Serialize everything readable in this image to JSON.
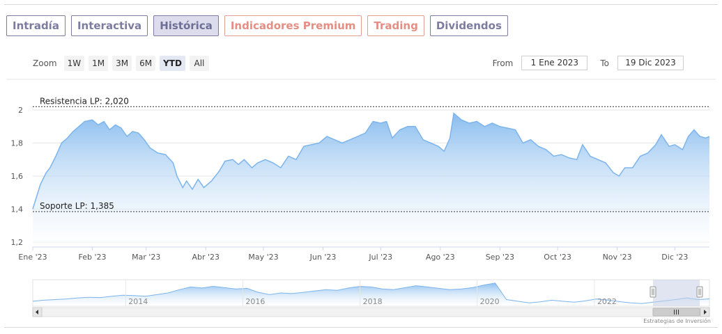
{
  "tabs": [
    {
      "label": "Intradía",
      "style": "normal"
    },
    {
      "label": "Interactiva",
      "style": "normal"
    },
    {
      "label": "Histórica",
      "style": "active"
    },
    {
      "label": "Indicadores Premium",
      "style": "premium"
    },
    {
      "label": "Trading",
      "style": "premium"
    },
    {
      "label": "Dividendos",
      "style": "normal"
    }
  ],
  "zoom": {
    "label": "Zoom",
    "buttons": [
      "1W",
      "1M",
      "3M",
      "6M",
      "YTD",
      "All"
    ],
    "selected": "YTD"
  },
  "range": {
    "from_label": "From",
    "from_value": "1 Ene 2023",
    "to_label": "To",
    "to_value": "19 Dic 2023"
  },
  "credits": "Estrategias de Inversión",
  "colors": {
    "series_line": "#7cb5ec",
    "area_top": "#7cb5ec",
    "area_bottom": "#ffffff",
    "tab_border": "#7c7ca0",
    "tab_premium": "#e48e84",
    "tab_active_bg": "#dcdcec",
    "navigator_mask": "#c7d0e6"
  },
  "chart_data": {
    "type": "area",
    "ylim": [
      1.2,
      2.0
    ],
    "yticks": [
      {
        "value": 1.2,
        "label": "1,2"
      },
      {
        "value": 1.4,
        "label": "1,4"
      },
      {
        "value": 1.6,
        "label": "1,6"
      },
      {
        "value": 1.8,
        "label": "1,8"
      },
      {
        "value": 2.0,
        "label": "2"
      }
    ],
    "xticks": [
      "Ene '23",
      "Feb '23",
      "Mar '23",
      "Abr '23",
      "May '23",
      "Jun '23",
      "Jul '23",
      "Ago '23",
      "Sep '23",
      "Oct '23",
      "Nov '23",
      "Dic '23"
    ],
    "x_range": [
      "2023-01-01",
      "2023-12-19"
    ],
    "grid": true,
    "plot_lines": [
      {
        "value": 2.02,
        "label": "Resistencia LP: 2,020"
      },
      {
        "value": 1.385,
        "label": "Soporte LP: 1,385"
      }
    ],
    "series": [
      {
        "points": [
          [
            "2023-01-01",
            1.4
          ],
          [
            "2023-01-05",
            1.55
          ],
          [
            "2023-01-08",
            1.62
          ],
          [
            "2023-01-10",
            1.65
          ],
          [
            "2023-01-13",
            1.72
          ],
          [
            "2023-01-16",
            1.8
          ],
          [
            "2023-01-19",
            1.83
          ],
          [
            "2023-01-22",
            1.87
          ],
          [
            "2023-01-25",
            1.9
          ],
          [
            "2023-01-28",
            1.93
          ],
          [
            "2023-02-01",
            1.94
          ],
          [
            "2023-02-04",
            1.91
          ],
          [
            "2023-02-07",
            1.93
          ],
          [
            "2023-02-10",
            1.88
          ],
          [
            "2023-02-13",
            1.91
          ],
          [
            "2023-02-16",
            1.89
          ],
          [
            "2023-02-19",
            1.84
          ],
          [
            "2023-02-22",
            1.87
          ],
          [
            "2023-02-25",
            1.86
          ],
          [
            "2023-02-28",
            1.82
          ],
          [
            "2023-03-03",
            1.77
          ],
          [
            "2023-03-07",
            1.74
          ],
          [
            "2023-03-11",
            1.73
          ],
          [
            "2023-03-15",
            1.68
          ],
          [
            "2023-03-17",
            1.6
          ],
          [
            "2023-03-20",
            1.53
          ],
          [
            "2023-03-22",
            1.57
          ],
          [
            "2023-03-25",
            1.52
          ],
          [
            "2023-03-28",
            1.58
          ],
          [
            "2023-03-31",
            1.53
          ],
          [
            "2023-04-04",
            1.57
          ],
          [
            "2023-04-08",
            1.63
          ],
          [
            "2023-04-11",
            1.69
          ],
          [
            "2023-04-15",
            1.7
          ],
          [
            "2023-04-18",
            1.67
          ],
          [
            "2023-04-21",
            1.7
          ],
          [
            "2023-04-25",
            1.65
          ],
          [
            "2023-04-28",
            1.68
          ],
          [
            "2023-05-02",
            1.7
          ],
          [
            "2023-05-06",
            1.68
          ],
          [
            "2023-05-10",
            1.65
          ],
          [
            "2023-05-14",
            1.72
          ],
          [
            "2023-05-18",
            1.7
          ],
          [
            "2023-05-22",
            1.78
          ],
          [
            "2023-05-26",
            1.79
          ],
          [
            "2023-05-30",
            1.8
          ],
          [
            "2023-06-03",
            1.84
          ],
          [
            "2023-06-07",
            1.82
          ],
          [
            "2023-06-11",
            1.8
          ],
          [
            "2023-06-15",
            1.82
          ],
          [
            "2023-06-19",
            1.84
          ],
          [
            "2023-06-23",
            1.86
          ],
          [
            "2023-06-27",
            1.93
          ],
          [
            "2023-07-01",
            1.92
          ],
          [
            "2023-07-04",
            1.93
          ],
          [
            "2023-07-07",
            1.83
          ],
          [
            "2023-07-11",
            1.88
          ],
          [
            "2023-07-15",
            1.9
          ],
          [
            "2023-07-19",
            1.9
          ],
          [
            "2023-07-23",
            1.82
          ],
          [
            "2023-07-27",
            1.8
          ],
          [
            "2023-07-31",
            1.78
          ],
          [
            "2023-08-03",
            1.75
          ],
          [
            "2023-08-06",
            1.83
          ],
          [
            "2023-08-08",
            1.98
          ],
          [
            "2023-08-12",
            1.94
          ],
          [
            "2023-08-16",
            1.92
          ],
          [
            "2023-08-20",
            1.93
          ],
          [
            "2023-08-24",
            1.9
          ],
          [
            "2023-08-28",
            1.92
          ],
          [
            "2023-09-01",
            1.9
          ],
          [
            "2023-09-05",
            1.89
          ],
          [
            "2023-09-09",
            1.88
          ],
          [
            "2023-09-13",
            1.8
          ],
          [
            "2023-09-17",
            1.82
          ],
          [
            "2023-09-21",
            1.78
          ],
          [
            "2023-09-25",
            1.76
          ],
          [
            "2023-09-29",
            1.72
          ],
          [
            "2023-10-03",
            1.73
          ],
          [
            "2023-10-07",
            1.71
          ],
          [
            "2023-10-11",
            1.7
          ],
          [
            "2023-10-14",
            1.79
          ],
          [
            "2023-10-18",
            1.72
          ],
          [
            "2023-10-22",
            1.7
          ],
          [
            "2023-10-26",
            1.68
          ],
          [
            "2023-10-30",
            1.62
          ],
          [
            "2023-11-02",
            1.6
          ],
          [
            "2023-11-05",
            1.65
          ],
          [
            "2023-11-09",
            1.65
          ],
          [
            "2023-11-13",
            1.72
          ],
          [
            "2023-11-17",
            1.74
          ],
          [
            "2023-11-21",
            1.79
          ],
          [
            "2023-11-24",
            1.85
          ],
          [
            "2023-11-28",
            1.78
          ],
          [
            "2023-12-01",
            1.79
          ],
          [
            "2023-12-05",
            1.76
          ],
          [
            "2023-12-08",
            1.84
          ],
          [
            "2023-12-11",
            1.88
          ],
          [
            "2023-12-14",
            1.84
          ],
          [
            "2023-12-17",
            1.83
          ],
          [
            "2023-12-19",
            1.84
          ]
        ]
      }
    ],
    "navigator": {
      "xticks": [
        "2014",
        "2016",
        "2018",
        "2020",
        "2022"
      ],
      "x_range": [
        "2012-06-01",
        "2023-12-19"
      ],
      "values": [
        1.35,
        1.38,
        1.4,
        1.42,
        1.45,
        1.47,
        1.46,
        1.5,
        1.53,
        1.52,
        1.5,
        1.55,
        1.6,
        1.7,
        1.78,
        1.75,
        1.8,
        1.76,
        1.72,
        1.74,
        1.62,
        1.55,
        1.6,
        1.58,
        1.62,
        1.66,
        1.7,
        1.68,
        1.75,
        1.8,
        1.78,
        1.72,
        1.7,
        1.76,
        1.82,
        1.78,
        1.74,
        1.7,
        1.72,
        1.76,
        1.84,
        1.9,
        1.4,
        1.35,
        1.3,
        1.33,
        1.38,
        1.35,
        1.32,
        1.36,
        1.42,
        1.38,
        1.34,
        1.3,
        1.28,
        1.32,
        1.36,
        1.4,
        1.45,
        1.4,
        1.42
      ],
      "selection_start": "2023-01-01"
    }
  }
}
